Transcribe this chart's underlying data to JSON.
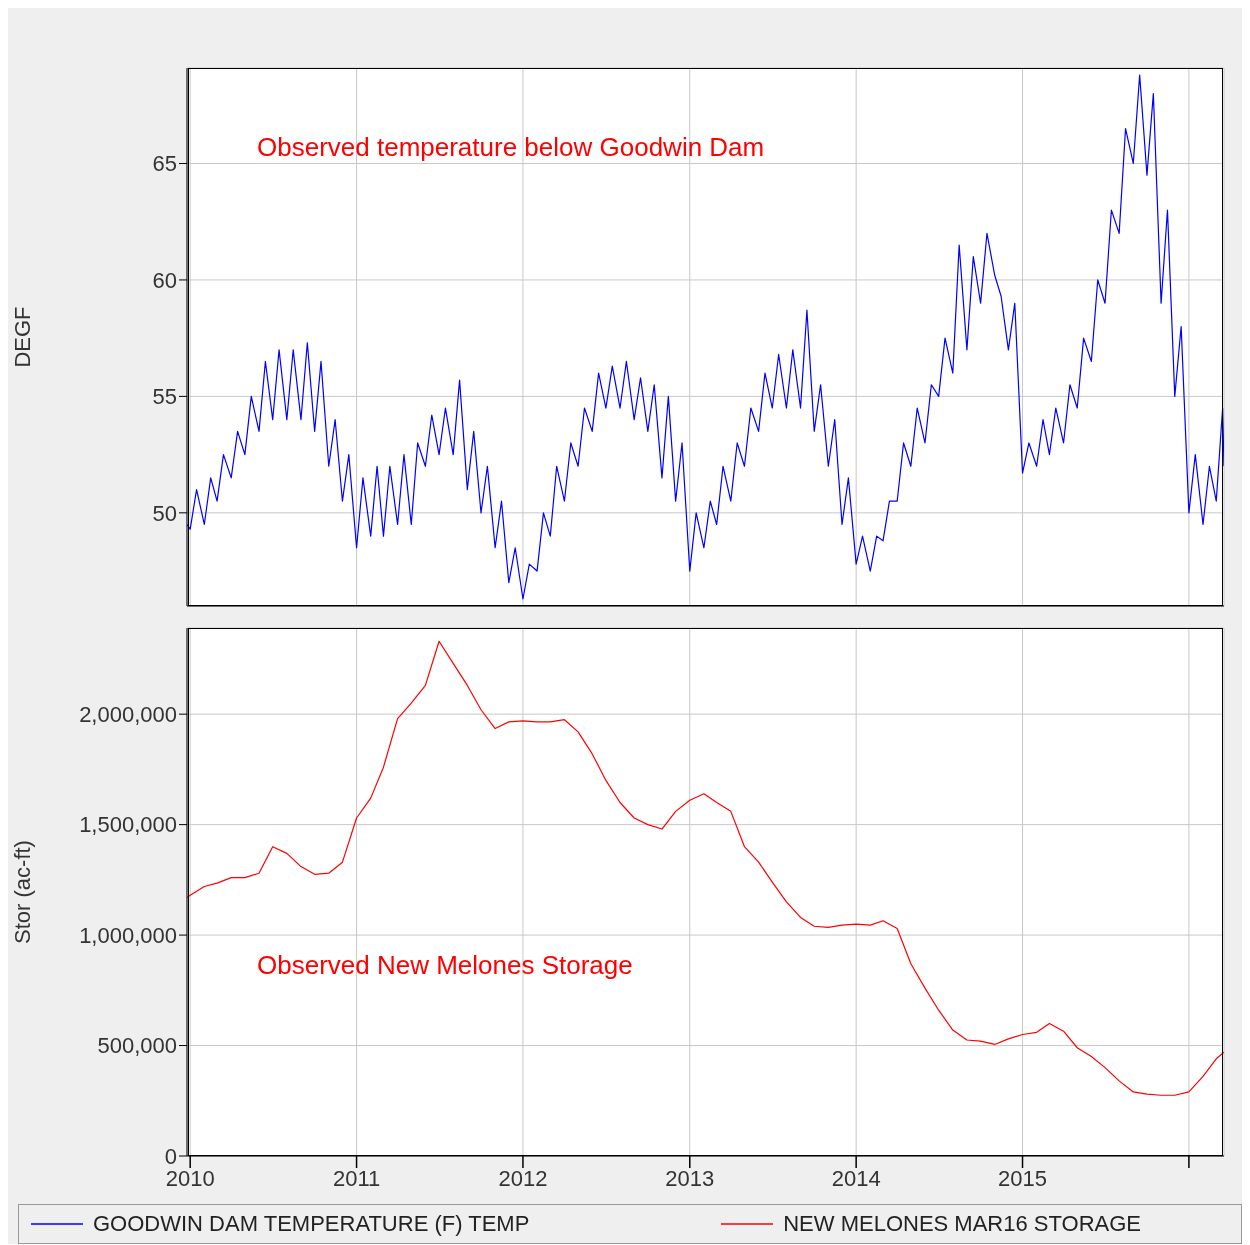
{
  "chart_data": [
    {
      "type": "line",
      "ylabel": "DEGF",
      "annotations": [
        "Observed temperature below Goodwin Dam"
      ],
      "xlim": [
        "2009-12-25",
        "2016-03-18"
      ],
      "xticks": [
        {
          "value": "2010",
          "label": null
        },
        {
          "value": "2011",
          "label": null
        },
        {
          "value": "2012",
          "label": null
        },
        {
          "value": "2013",
          "label": null
        },
        {
          "value": "2014",
          "label": null
        },
        {
          "value": "2015",
          "label": null
        },
        {
          "value": "2016",
          "label": null
        }
      ],
      "ylim": [
        46,
        69.1
      ],
      "yticks": [
        50,
        55,
        60,
        65
      ],
      "grid": true,
      "tick_labels": "y",
      "legend": "bottom",
      "marker": "none",
      "line_style": "solid",
      "x": [
        "2009-12-25",
        "2010-01-01",
        "2010-01-15",
        "2010-02-01",
        "2010-02-15",
        "2010-03-01",
        "2010-03-15",
        "2010-04-01",
        "2010-04-15",
        "2010-05-01",
        "2010-05-15",
        "2010-06-01",
        "2010-06-15",
        "2010-07-01",
        "2010-07-15",
        "2010-08-01",
        "2010-08-15",
        "2010-09-01",
        "2010-09-15",
        "2010-10-01",
        "2010-10-15",
        "2010-11-01",
        "2010-11-15",
        "2010-12-01",
        "2010-12-15",
        "2011-01-01",
        "2011-01-15",
        "2011-02-01",
        "2011-02-15",
        "2011-03-01",
        "2011-03-15",
        "2011-04-01",
        "2011-04-15",
        "2011-05-01",
        "2011-05-15",
        "2011-06-01",
        "2011-06-15",
        "2011-07-01",
        "2011-07-15",
        "2011-08-01",
        "2011-08-15",
        "2011-09-01",
        "2011-09-15",
        "2011-10-01",
        "2011-10-15",
        "2011-11-01",
        "2011-11-15",
        "2011-12-01",
        "2011-12-15",
        "2012-01-01",
        "2012-01-15",
        "2012-02-01",
        "2012-02-15",
        "2012-03-01",
        "2012-03-15",
        "2012-04-01",
        "2012-04-15",
        "2012-05-01",
        "2012-05-15",
        "2012-06-01",
        "2012-06-15",
        "2012-07-01",
        "2012-07-15",
        "2012-08-01",
        "2012-08-15",
        "2012-09-01",
        "2012-09-15",
        "2012-10-01",
        "2012-10-15",
        "2012-11-01",
        "2012-11-15",
        "2012-12-01",
        "2012-12-15",
        "2013-01-01",
        "2013-01-15",
        "2013-02-01",
        "2013-02-15",
        "2013-03-01",
        "2013-03-15",
        "2013-04-01",
        "2013-04-15",
        "2013-05-01",
        "2013-05-15",
        "2013-06-01",
        "2013-06-15",
        "2013-07-01",
        "2013-07-15",
        "2013-08-01",
        "2013-08-15",
        "2013-09-01",
        "2013-09-15",
        "2013-10-01",
        "2013-10-15",
        "2013-11-01",
        "2013-11-15",
        "2013-12-01",
        "2013-12-15",
        "2014-01-01",
        "2014-01-15",
        "2014-02-01",
        "2014-02-15",
        "2014-03-01",
        "2014-03-15",
        "2014-04-01",
        "2014-04-15",
        "2014-05-01",
        "2014-05-15",
        "2014-06-01",
        "2014-06-15",
        "2014-07-01",
        "2014-07-15",
        "2014-08-01",
        "2014-08-15",
        "2014-09-01",
        "2014-09-15",
        "2014-10-01",
        "2014-10-15",
        "2014-11-01",
        "2014-11-15",
        "2014-12-01",
        "2014-12-15",
        "2015-01-01",
        "2015-01-15",
        "2015-02-01",
        "2015-02-15",
        "2015-03-01",
        "2015-03-15",
        "2015-04-01",
        "2015-04-15",
        "2015-05-01",
        "2015-05-15",
        "2015-06-01",
        "2015-06-15",
        "2015-07-01",
        "2015-07-15",
        "2015-08-01",
        "2015-08-15",
        "2015-09-01",
        "2015-09-15",
        "2015-10-01",
        "2015-10-15",
        "2015-11-01",
        "2015-11-15",
        "2015-12-01",
        "2015-12-15",
        "2016-01-01",
        "2016-01-15",
        "2016-02-01",
        "2016-02-15",
        "2016-03-01",
        "2016-03-15",
        "2016-03-18"
      ],
      "series": [
        {
          "name": "GOODWIN DAM TEMPERATURE (F) TEMP",
          "color": "#0000ff",
          "values": [
            49.5,
            49.3,
            51,
            49.5,
            51.5,
            50.5,
            52.5,
            51.5,
            53.5,
            52.5,
            55,
            53.5,
            56.5,
            54,
            57,
            54,
            57,
            54,
            57.3,
            53.5,
            56.5,
            52,
            54,
            50.5,
            52.5,
            48.5,
            51.5,
            49,
            52,
            49,
            52,
            49.5,
            52.5,
            49.5,
            53,
            52,
            54.2,
            52.5,
            54.5,
            52.5,
            55.7,
            51,
            53.5,
            50,
            52,
            48.5,
            50.5,
            47,
            48.5,
            46.3,
            47.8,
            47.5,
            50,
            49,
            52,
            50.5,
            53,
            52,
            54.5,
            53.5,
            56,
            54.5,
            56.3,
            54.5,
            56.5,
            54,
            55.8,
            53.5,
            55.5,
            51.5,
            55,
            50.5,
            53,
            47.5,
            50,
            48.5,
            50.5,
            49.5,
            52,
            50.5,
            53,
            52,
            54.5,
            53.5,
            56,
            54.5,
            56.8,
            54.5,
            57,
            54.5,
            58.7,
            53.5,
            55.5,
            52,
            54,
            49.5,
            51.5,
            47.8,
            49,
            47.5,
            49,
            48.8,
            50.5,
            50.5,
            53,
            52,
            54.5,
            53,
            55.5,
            55,
            57.5,
            56,
            61.5,
            57,
            61,
            59,
            62,
            60.2,
            59.3,
            57,
            59,
            51.7,
            53,
            52,
            54,
            52.5,
            54.5,
            53,
            55.5,
            54.5,
            57.5,
            56.5,
            60,
            59,
            63,
            62,
            66.5,
            65,
            68.8,
            64.5,
            68,
            59,
            63,
            55,
            58,
            50,
            52.5,
            49.5,
            52,
            50.5,
            54.5,
            52
          ]
        }
      ]
    },
    {
      "type": "line",
      "ylabel": "Stor (ac-ft)",
      "annotations": [
        "Observed New Melones Storage"
      ],
      "xlim": [
        "2009-12-25",
        "2016-03-18"
      ],
      "xticks": [
        "2010",
        "2011",
        "2012",
        "2013",
        "2014",
        "2015",
        {
          "value": "2016",
          "label": null
        }
      ],
      "ylim": [
        0,
        2390000
      ],
      "yticks": [
        0,
        {
          "value": 500000,
          "label": "500,000"
        },
        {
          "value": 1000000,
          "label": "1,000,000"
        },
        {
          "value": 1500000,
          "label": "1,500,000"
        },
        {
          "value": 2000000,
          "label": "2,000,000"
        }
      ],
      "grid": true,
      "legend": "bottom",
      "marker": "none",
      "line_style": "solid",
      "x": [
        "2009-12-25",
        "2010-01-01",
        "2010-02-01",
        "2010-03-01",
        "2010-04-01",
        "2010-05-01",
        "2010-06-01",
        "2010-07-01",
        "2010-08-01",
        "2010-09-01",
        "2010-10-01",
        "2010-11-01",
        "2010-12-01",
        "2011-01-01",
        "2011-02-01",
        "2011-03-01",
        "2011-04-01",
        "2011-05-01",
        "2011-06-01",
        "2011-07-01",
        "2011-08-01",
        "2011-09-01",
        "2011-10-01",
        "2011-11-01",
        "2011-12-01",
        "2012-01-01",
        "2012-02-01",
        "2012-03-01",
        "2012-04-01",
        "2012-05-01",
        "2012-06-01",
        "2012-07-01",
        "2012-08-01",
        "2012-09-01",
        "2012-10-01",
        "2012-11-01",
        "2012-12-01",
        "2013-01-01",
        "2013-02-01",
        "2013-03-01",
        "2013-04-01",
        "2013-05-01",
        "2013-06-01",
        "2013-07-01",
        "2013-08-01",
        "2013-09-01",
        "2013-10-01",
        "2013-11-01",
        "2013-12-01",
        "2014-01-01",
        "2014-02-01",
        "2014-03-01",
        "2014-04-01",
        "2014-05-01",
        "2014-06-01",
        "2014-07-01",
        "2014-08-01",
        "2014-09-01",
        "2014-10-01",
        "2014-11-01",
        "2014-12-01",
        "2015-01-01",
        "2015-02-01",
        "2015-03-01",
        "2015-04-01",
        "2015-05-01",
        "2015-06-01",
        "2015-07-01",
        "2015-08-01",
        "2015-09-01",
        "2015-10-01",
        "2015-11-01",
        "2015-12-01",
        "2016-01-01",
        "2016-02-01",
        "2016-03-01",
        "2016-03-18"
      ],
      "series": [
        {
          "name": "NEW MELONES MAR16 STORAGE",
          "color": "#ff0000",
          "values": [
            1170000,
            1180000,
            1220000,
            1235000,
            1260000,
            1260000,
            1280000,
            1400000,
            1370000,
            1310000,
            1275000,
            1280000,
            1330000,
            1530000,
            1620000,
            1760000,
            1980000,
            2050000,
            2130000,
            2330000,
            2230000,
            2130000,
            2020000,
            1935000,
            1965000,
            1970000,
            1965000,
            1965000,
            1975000,
            1920000,
            1820000,
            1700000,
            1600000,
            1530000,
            1500000,
            1480000,
            1560000,
            1610000,
            1640000,
            1600000,
            1560000,
            1400000,
            1330000,
            1240000,
            1150000,
            1080000,
            1040000,
            1035000,
            1045000,
            1050000,
            1045000,
            1065000,
            1030000,
            870000,
            760000,
            660000,
            570000,
            525000,
            520000,
            505000,
            530000,
            550000,
            560000,
            600000,
            565000,
            490000,
            450000,
            400000,
            340000,
            290000,
            280000,
            275000,
            275000,
            290000,
            360000,
            440000,
            470000
          ]
        }
      ]
    }
  ]
}
